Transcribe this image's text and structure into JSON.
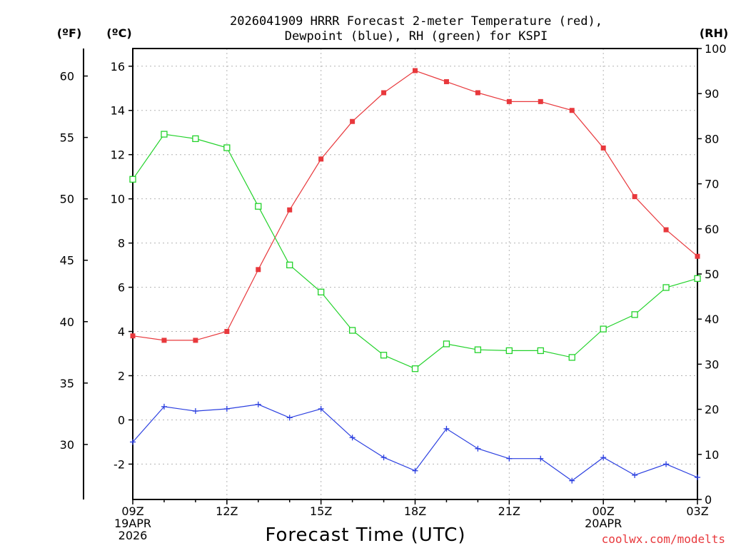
{
  "chart_data": {
    "type": "line",
    "title": [
      "2026041909 HRRR Forecast 2-meter Temperature (red),",
      "Dewpoint (blue), RH (green) for KSPI"
    ],
    "xlabel": "Forecast Time (UTC)",
    "credit": "coolwx.com/modelts",
    "units": {
      "f": "(ºF)",
      "c": "(ºC)",
      "rh": "(RH)"
    },
    "x_hours": [
      9,
      10,
      11,
      12,
      13,
      14,
      15,
      16,
      17,
      18,
      19,
      20,
      21,
      22,
      23,
      24,
      25,
      26,
      27
    ],
    "xlim": [
      9,
      27
    ],
    "x_ticks": [
      {
        "hour": 9,
        "lines": [
          "09Z",
          "19APR",
          "2026"
        ]
      },
      {
        "hour": 12,
        "lines": [
          "12Z"
        ]
      },
      {
        "hour": 15,
        "lines": [
          "15Z"
        ]
      },
      {
        "hour": 18,
        "lines": [
          "18Z"
        ]
      },
      {
        "hour": 21,
        "lines": [
          "21Z"
        ]
      },
      {
        "hour": 24,
        "lines": [
          "00Z",
          "20APR"
        ]
      },
      {
        "hour": 27,
        "lines": [
          "03Z"
        ]
      }
    ],
    "ylim_c": [
      -3.6,
      16.8
    ],
    "ylim_rh": [
      0,
      100
    ],
    "yticks_c": [
      "-2",
      "0",
      "2",
      "4",
      "6",
      "8",
      "10",
      "12",
      "14",
      "16"
    ],
    "yticks_f": [
      "30",
      "35",
      "40",
      "45",
      "50",
      "55",
      "60"
    ],
    "yticks_rh": [
      "0",
      "10",
      "20",
      "30",
      "40",
      "50",
      "60",
      "70",
      "80",
      "90",
      "100"
    ],
    "series": [
      {
        "name": "Temperature",
        "axis": "c",
        "color": "#e8383c",
        "marker": "filled-square",
        "values": [
          3.8,
          3.6,
          3.6,
          4.0,
          6.8,
          9.5,
          11.8,
          13.5,
          14.8,
          15.8,
          15.3,
          14.8,
          14.4,
          14.4,
          14.0,
          12.3,
          10.1,
          8.6,
          7.4
        ]
      },
      {
        "name": "Dewpoint",
        "axis": "c",
        "color": "#2b3fe0",
        "marker": "plus",
        "values": [
          -1.0,
          0.6,
          0.4,
          0.5,
          0.7,
          0.1,
          0.5,
          -0.8,
          -1.7,
          -2.3,
          -0.4,
          -1.3,
          -1.75,
          -1.75,
          -2.75,
          -1.7,
          -2.5,
          -2.0,
          -2.6
        ]
      },
      {
        "name": "RH",
        "axis": "rh",
        "color": "#22d22a",
        "marker": "open-square",
        "values": [
          71,
          81,
          80,
          78,
          65,
          52,
          46,
          37.5,
          32,
          29,
          34.5,
          33.2,
          33,
          33,
          31.5,
          37.8,
          41,
          47,
          49
        ]
      }
    ]
  }
}
